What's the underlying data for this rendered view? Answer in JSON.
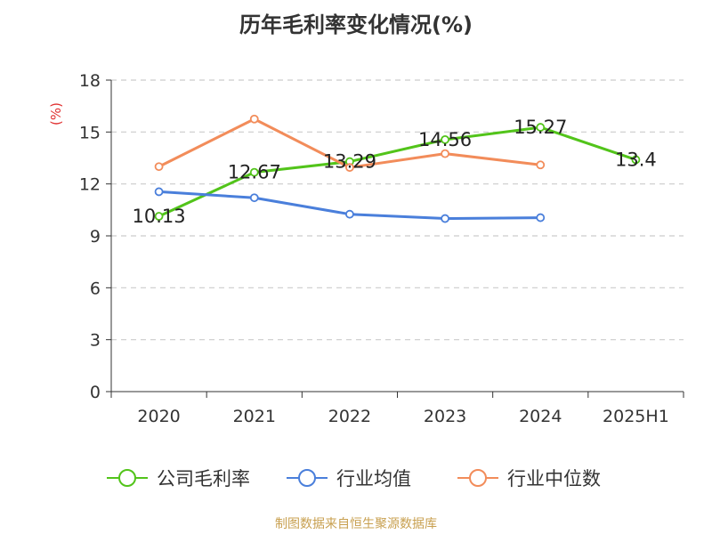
{
  "chart_data": {
    "type": "line",
    "title": "历年毛利率变化情况(%)",
    "ylabel": "(%)",
    "categories": [
      "2020",
      "2021",
      "2022",
      "2023",
      "2024",
      "2025H1"
    ],
    "yticks": [
      "0",
      "3",
      "6",
      "9",
      "12",
      "15",
      "18"
    ],
    "ylim": [
      0,
      18
    ],
    "grid": true,
    "legend_position": "bottom",
    "series": [
      {
        "name": "公司毛利率",
        "color": "#52c41a",
        "values": [
          10.13,
          12.67,
          13.29,
          14.56,
          15.27,
          13.4
        ],
        "labels": [
          "10.13",
          "12.67",
          "13.29",
          "14.56",
          "15.27",
          "13.4"
        ]
      },
      {
        "name": "行业均值",
        "color": "#4a7fdb",
        "values": [
          11.55,
          11.2,
          10.25,
          10.0,
          10.05,
          null
        ]
      },
      {
        "name": "行业中位数",
        "color": "#f28c5a",
        "values": [
          13.0,
          15.75,
          12.95,
          13.75,
          13.1,
          null
        ]
      }
    ]
  },
  "footer": {
    "source": "制图数据来自恒生聚源数据库"
  }
}
